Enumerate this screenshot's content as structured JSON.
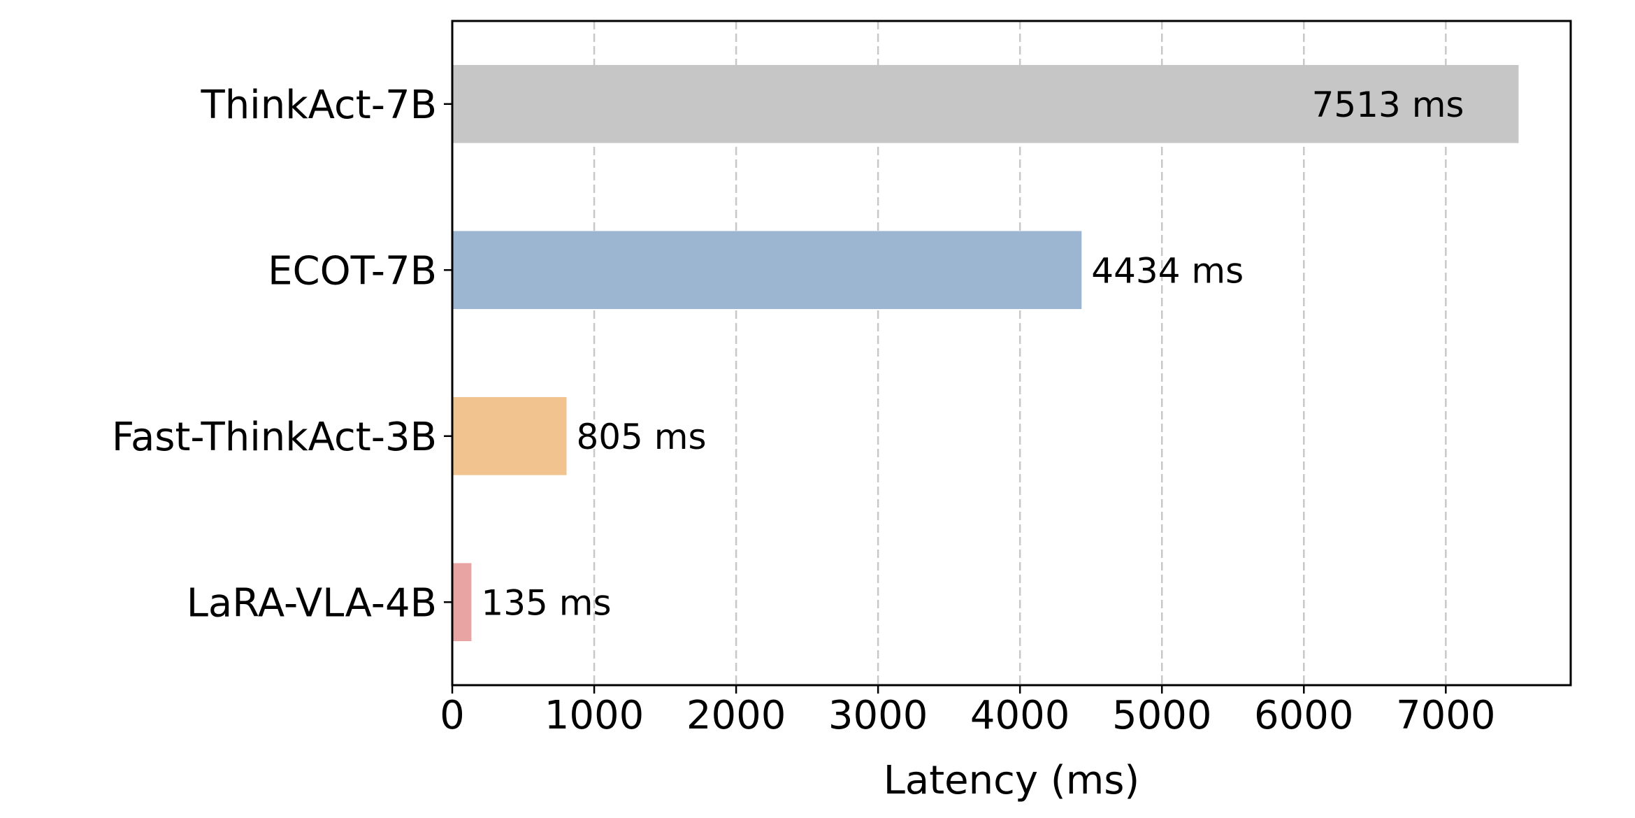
{
  "chart_data": {
    "type": "bar",
    "orientation": "horizontal",
    "categories": [
      "ThinkAct-7B",
      "ECOT-7B",
      "Fast-ThinkAct-3B",
      "LaRA-VLA-4B"
    ],
    "values": [
      7513,
      4434,
      805,
      135
    ],
    "value_labels": [
      "7513 ms",
      "4434 ms",
      "805 ms",
      "135 ms"
    ],
    "colors": [
      "#c6c6c6",
      "#9cb6d2",
      "#f0c38f",
      "#e8a3a3"
    ],
    "xlabel": "Latency (ms)",
    "ylabel": "",
    "title": "",
    "xlim": [
      0,
      7880
    ],
    "xticks": [
      0,
      1000,
      2000,
      3000,
      4000,
      5000,
      6000,
      7000
    ],
    "xtick_labels": [
      "0",
      "1000",
      "2000",
      "3000",
      "4000",
      "5000",
      "6000",
      "7000"
    ],
    "grid": "vertical dashed",
    "legend": "none"
  }
}
